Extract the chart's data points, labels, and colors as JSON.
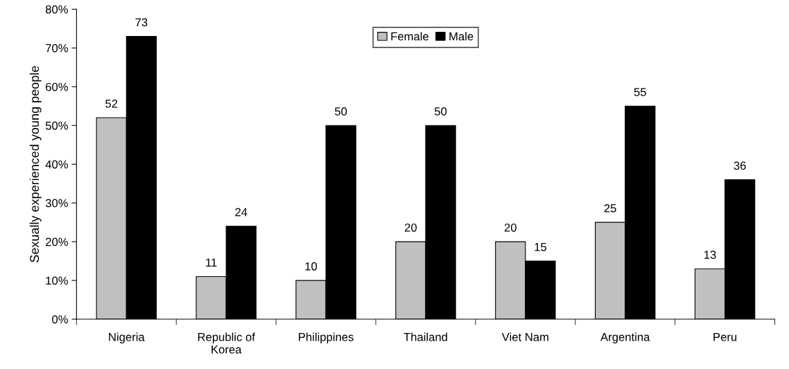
{
  "chart_data": {
    "type": "bar",
    "ylabel": "Sexually experienced young people",
    "categories": [
      "Nigeria",
      "Republic of\nKorea",
      "Philippines",
      "Thailand",
      "Viet Nam",
      "Argentina",
      "Peru"
    ],
    "series": [
      {
        "name": "Female",
        "color": "#c0c0c0",
        "values": [
          52,
          11,
          10,
          20,
          20,
          25,
          13
        ]
      },
      {
        "name": "Male",
        "color": "#000000",
        "values": [
          73,
          24,
          50,
          50,
          15,
          55,
          36
        ]
      }
    ],
    "ylim": [
      0,
      80
    ],
    "yticks": [
      {
        "value": 0,
        "label": "0%"
      },
      {
        "value": 10,
        "label": "10%"
      },
      {
        "value": 20,
        "label": "20%"
      },
      {
        "value": 30,
        "label": "30%"
      },
      {
        "value": 40,
        "label": "40%"
      },
      {
        "value": 50,
        "label": "50%"
      },
      {
        "value": 60,
        "label": "60%"
      },
      {
        "value": 70,
        "label": "70%"
      },
      {
        "value": 80,
        "label": "80%"
      }
    ],
    "data_labels": true,
    "grid": false,
    "legend": "top"
  }
}
